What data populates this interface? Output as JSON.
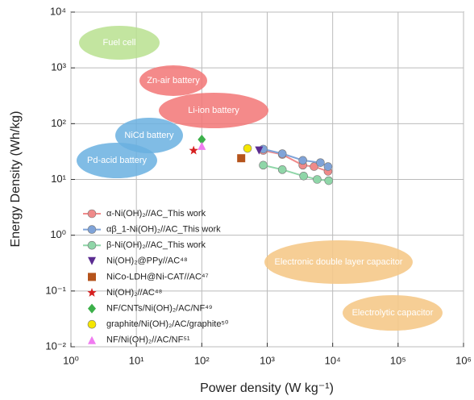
{
  "chart_data": {
    "type": "scatter",
    "xlabel": "Power density (W kg⁻¹)",
    "ylabel": "Energy Density (Wh/kg)",
    "xscale": "log",
    "yscale": "log",
    "grid": true,
    "xlim": [
      1,
      1000000
    ],
    "ylim": [
      0.01,
      10000
    ],
    "xticks": [
      {
        "value": 1,
        "label": "10⁰"
      },
      {
        "value": 10,
        "label": "10¹"
      },
      {
        "value": 100,
        "label": "10²"
      },
      {
        "value": 1000,
        "label": "10³"
      },
      {
        "value": 10000,
        "label": "10⁴"
      },
      {
        "value": 100000,
        "label": "10⁵"
      },
      {
        "value": 1000000,
        "label": "10⁶"
      }
    ],
    "yticks": [
      {
        "value": 0.01,
        "label": "10⁻²"
      },
      {
        "value": 0.1,
        "label": "10⁻¹"
      },
      {
        "value": 1,
        "label": "10⁰"
      },
      {
        "value": 10,
        "label": "10¹"
      },
      {
        "value": 100,
        "label": "10²"
      },
      {
        "value": 1000,
        "label": "10³"
      },
      {
        "value": 10000,
        "label": "10⁴"
      }
    ],
    "regions": [
      {
        "label": "Fuel cell"
      },
      {
        "label": "Zn-air battery"
      },
      {
        "label": "Li-ion battery"
      },
      {
        "label": "NiCd battery"
      },
      {
        "label": "Pd-acid battery"
      },
      {
        "label": "Electronic double layer capacitor"
      },
      {
        "label": "Electrolytic capacitor"
      }
    ],
    "series": [
      {
        "name": "α-Ni(OH)₂//AC_This work",
        "color": "#f08a8a",
        "marker": "circle",
        "x": [
          870,
          1700,
          3500,
          5200,
          8500
        ],
        "values": [
          33,
          28,
          18,
          17,
          14
        ]
      },
      {
        "name": "αβ_1-Ni(OH)₂//AC_This work",
        "color": "#7fa3d8",
        "marker": "circle",
        "x": [
          870,
          1700,
          3500,
          6500,
          8500
        ],
        "values": [
          35,
          29,
          22,
          20,
          17
        ]
      },
      {
        "name": "β-Ni(OH)₂//AC_This work",
        "color": "#8fd6a8",
        "marker": "circle",
        "x": [
          870,
          1700,
          3600,
          5800,
          8700
        ],
        "values": [
          18,
          15,
          11.5,
          10,
          9.5
        ]
      },
      {
        "name": "Ni(OH)₂@PPy//AC⁴⁸",
        "color": "#5b2c91",
        "marker": "triangle-down",
        "x": [
          750
        ],
        "values": [
          33
        ]
      },
      {
        "name": "NiCo-LDH@Ni-CAT//AC⁴⁷",
        "color": "#b5541c",
        "marker": "square",
        "x": [
          400
        ],
        "values": [
          24
        ]
      },
      {
        "name": "Ni(OH)₂//AC⁴⁸",
        "color": "#d62020",
        "marker": "star",
        "x": [
          75
        ],
        "values": [
          33
        ]
      },
      {
        "name": "NF/CNTs/Ni(OH)₂/AC/NF⁴⁹",
        "color": "#3cb04a",
        "marker": "diamond",
        "x": [
          100
        ],
        "values": [
          52
        ]
      },
      {
        "name": "graphite/Ni(OH)₂/AC/graphite⁵⁰",
        "color": "#f5e600",
        "marker": "circle",
        "x": [
          500
        ],
        "values": [
          36
        ]
      },
      {
        "name": "NF/Ni(OH)₂//AC/NF⁵¹",
        "color": "#f07cf0",
        "marker": "triangle-up",
        "x": [
          100
        ],
        "values": [
          40
        ]
      }
    ]
  }
}
